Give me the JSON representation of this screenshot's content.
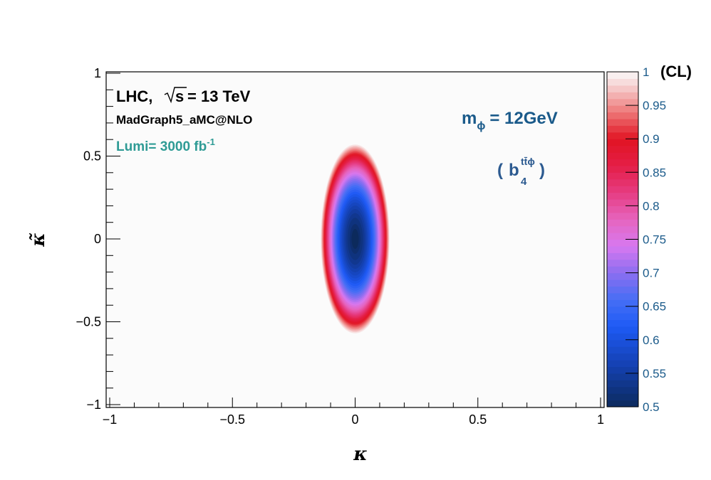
{
  "chart_data": {
    "type": "heatmap",
    "xlabel": "κ",
    "ylabel": "κ̃",
    "xlim": [
      -1,
      1
    ],
    "ylim": [
      -1,
      1
    ],
    "x_ticks": [
      -1,
      -0.5,
      0,
      0.5,
      1
    ],
    "y_ticks": [
      -1,
      -0.5,
      0,
      0.5,
      1
    ],
    "x_tick_labels": [
      "−1",
      "−0.5",
      "0",
      "0.5",
      "1"
    ],
    "y_tick_labels": [
      "−1",
      "−0.5",
      "0",
      "0.5",
      "1"
    ],
    "colorbar": {
      "title": "(CL)",
      "range": [
        0.5,
        1
      ],
      "ticks": [
        0.5,
        0.55,
        0.6,
        0.65,
        0.7,
        0.75,
        0.8,
        0.85,
        0.9,
        0.95,
        1
      ],
      "tick_labels": [
        "0.5",
        "0.55",
        "0.6",
        "0.65",
        "0.7",
        "0.75",
        "0.8",
        "0.85",
        "0.9",
        "0.95",
        "1"
      ]
    },
    "contour": {
      "center": [
        0,
        0
      ],
      "cl_min": 0.5,
      "cl_boundary": 0.99,
      "semi_axis_x_at_boundary": 0.14,
      "semi_axis_y_at_boundary": 0.57
    },
    "grid": false
  },
  "annotations": {
    "lhc_prefix": "LHC,",
    "sqrt_s": "s",
    "energy_suffix": "= 13 TeV",
    "generator": "MadGraph5_aMC@NLO",
    "lumi_text": "Lumi= 3000 fb",
    "lumi_exp": "-1",
    "mass_prefix": "m",
    "mass_sub": "ϕ",
    "mass_value": "= 12GeV",
    "coupling_open": "(",
    "coupling_base": "b",
    "coupling_sup": "tt̄ϕ",
    "coupling_sub": "4",
    "coupling_close": ")"
  },
  "colors": {
    "lumi": "#2e9b95",
    "mass": "#1a5a8a",
    "coupling": "#2c5a90",
    "colorbar_tick": "#1a5a8a"
  }
}
